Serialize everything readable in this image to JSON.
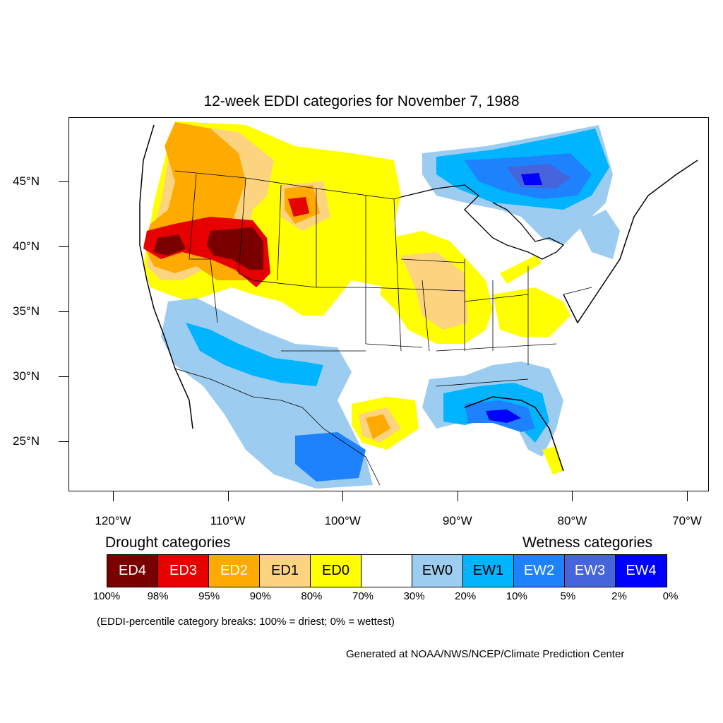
{
  "title": "12-week EDDI categories for November 7, 1988",
  "map": {
    "projection": "lat-lon",
    "lon_range": [
      -125,
      -68
    ],
    "lat_range": [
      21,
      50
    ],
    "lat_labels": [
      {
        "lat": 45,
        "text": "45°N"
      },
      {
        "lat": 40,
        "text": "40°N"
      },
      {
        "lat": 35,
        "text": "35°N"
      },
      {
        "lat": 30,
        "text": "30°N"
      },
      {
        "lat": 25,
        "text": "25°N"
      }
    ],
    "lon_labels": [
      {
        "lon": -120,
        "text": "120°W"
      },
      {
        "lon": -110,
        "text": "110°W"
      },
      {
        "lon": -100,
        "text": "100°W"
      },
      {
        "lon": -90,
        "text": "90°W"
      },
      {
        "lon": -80,
        "text": "80°W"
      },
      {
        "lon": -70,
        "text": "70°W"
      }
    ]
  },
  "legend": {
    "drought_heading": "Drought categories",
    "wetness_heading": "Wetness categories",
    "categories": [
      {
        "label": "ED4",
        "color": "#7a0000",
        "text_color": "#ffffff"
      },
      {
        "label": "ED3",
        "color": "#e60000",
        "text_color": "#ffffff"
      },
      {
        "label": "ED2",
        "color": "#ffaa00",
        "text_color": "#ffffff"
      },
      {
        "label": "ED1",
        "color": "#fcd37f",
        "text_color": "#000000"
      },
      {
        "label": "ED0",
        "color": "#ffff00",
        "text_color": "#000000"
      },
      {
        "label": "",
        "color": "#ffffff",
        "text_color": "#000000"
      },
      {
        "label": "EW0",
        "color": "#9ccdf0",
        "text_color": "#000000"
      },
      {
        "label": "EW1",
        "color": "#00b4ff",
        "text_color": "#000000"
      },
      {
        "label": "EW2",
        "color": "#1e82ff",
        "text_color": "#ffffff"
      },
      {
        "label": "EW3",
        "color": "#4664dc",
        "text_color": "#ffffff"
      },
      {
        "label": "EW4",
        "color": "#0000ff",
        "text_color": "#ffffff"
      }
    ],
    "percent_breaks": [
      "100%",
      "98%",
      "95%",
      "90%",
      "80%",
      "70%",
      "30%",
      "20%",
      "10%",
      "5%",
      "2%",
      "0%"
    ],
    "note": "(EDDI-percentile category breaks: 100% = driest; 0% = wettest)"
  },
  "credit": "Generated at NOAA/NWS/NCEP/Climate Prediction Center"
}
